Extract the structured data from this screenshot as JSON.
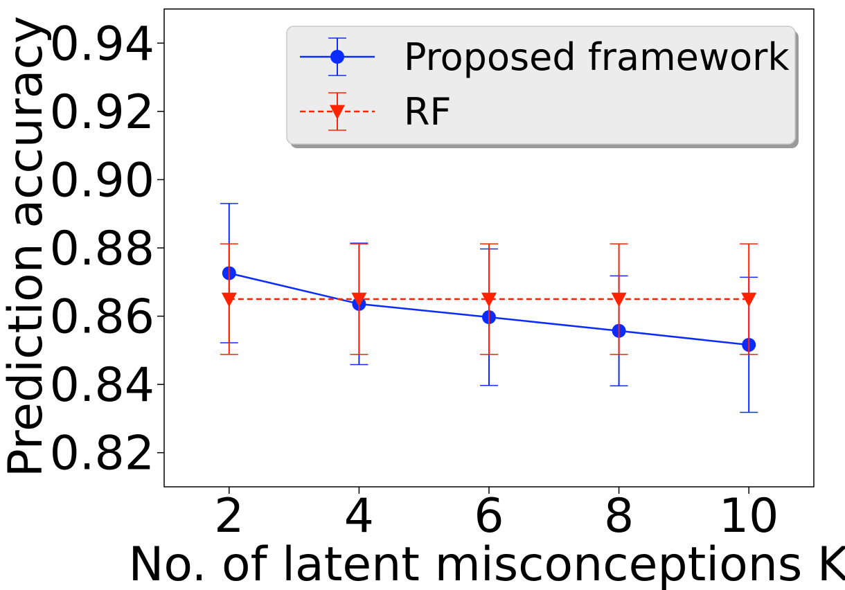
{
  "chart_data": {
    "type": "line",
    "title": "",
    "xlabel": "No. of latent misconceptions K",
    "ylabel": "Prediction accuracy",
    "x": [
      2,
      4,
      6,
      8,
      10
    ],
    "xlim": [
      1,
      11
    ],
    "ylim": [
      0.81,
      0.95
    ],
    "x_ticks": [
      "2",
      "4",
      "6",
      "8",
      "10"
    ],
    "y_ticks": [
      "0.82",
      "0.84",
      "0.86",
      "0.88",
      "0.90",
      "0.92",
      "0.94"
    ],
    "grid": false,
    "legend_position": "top-right",
    "series": [
      {
        "name": "Proposed framework",
        "values": [
          0.8726,
          0.8636,
          0.8597,
          0.8557,
          0.8516
        ],
        "error": [
          0.0204,
          0.0178,
          0.02,
          0.0161,
          0.0198
        ],
        "color": "#0b2cff",
        "line_style": "solid",
        "marker": "circle"
      },
      {
        "name": "RF",
        "values": [
          0.865,
          0.865,
          0.865,
          0.865,
          0.865
        ],
        "error": [
          0.0162,
          0.0162,
          0.0162,
          0.0162,
          0.0162
        ],
        "color": "#ff2200",
        "line_style": "dashed",
        "marker": "triangle-down"
      }
    ]
  }
}
